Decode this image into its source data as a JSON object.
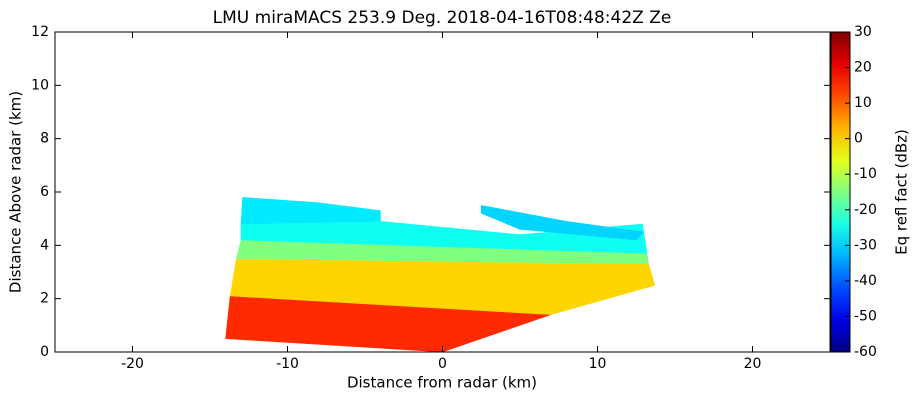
{
  "chart_data": {
    "type": "rhi",
    "title": "LMU miraMACS 253.9 Deg. 2018-04-16T08:48:42Z  Ze",
    "x_label": "Distance from radar (km)",
    "y_label": "Distance Above radar  (km)",
    "colorbar_label": "Eq refl fact (dBz)",
    "xlim": [
      -25,
      25
    ],
    "xticks": [
      -20,
      -10,
      0,
      10,
      20
    ],
    "ylim": [
      0,
      12
    ],
    "yticks": [
      0,
      2,
      4,
      6,
      8,
      10,
      12
    ],
    "clim": [
      -60,
      30
    ],
    "cticks": [
      -60,
      -50,
      -40,
      -30,
      -20,
      -10,
      0,
      10,
      20,
      30
    ],
    "colormap": "jet",
    "regions": [
      {
        "x": [
          -14,
          0,
          7,
          -13.7
        ],
        "y": [
          0.5,
          0,
          1.4,
          2.1
        ],
        "value": 15
      },
      {
        "x": [
          -13.7,
          7,
          13.7,
          13.3,
          -13.3
        ],
        "y": [
          2.1,
          1.4,
          2.5,
          3.3,
          3.5
        ],
        "value": 0
      },
      {
        "x": [
          -13.3,
          13.3,
          13.2,
          -13
        ],
        "y": [
          3.5,
          3.3,
          3.7,
          4.2
        ],
        "value": -15
      },
      {
        "x": [
          -13,
          13.2,
          12.9,
          5,
          -4,
          -13
        ],
        "y": [
          4.2,
          3.7,
          4.8,
          4.4,
          4.9,
          4.8
        ],
        "value": -25
      },
      {
        "x": [
          -13,
          -12.9,
          -8,
          -4,
          -4
        ],
        "y": [
          4.8,
          5.8,
          5.6,
          5.3,
          4.9
        ],
        "value": -28
      },
      {
        "x": [
          2.5,
          8,
          13,
          12.5,
          5,
          2.5
        ],
        "y": [
          5.5,
          4.9,
          4.5,
          4.2,
          4.6,
          5.2
        ],
        "value": -30
      }
    ]
  }
}
